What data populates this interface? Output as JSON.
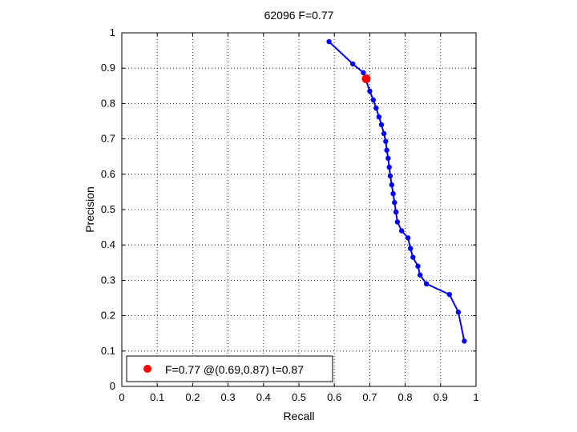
{
  "chart_data": {
    "type": "line",
    "title": "62096 F=0.77",
    "xlabel": "Recall",
    "ylabel": "Precision",
    "xlim": [
      0,
      1
    ],
    "ylim": [
      0,
      1
    ],
    "xticks": [
      "0",
      "0.1",
      "0.2",
      "0.3",
      "0.4",
      "0.5",
      "0.6",
      "0.7",
      "0.8",
      "0.9",
      "1"
    ],
    "yticks": [
      "0",
      "0.1",
      "0.2",
      "0.3",
      "0.4",
      "0.5",
      "0.6",
      "0.7",
      "0.8",
      "0.9",
      "1"
    ],
    "grid": true,
    "series": [
      {
        "color": "#0000ff",
        "x": [
          0.585,
          0.652,
          0.682,
          0.7,
          0.71,
          0.718,
          0.726,
          0.733,
          0.74,
          0.745,
          0.748,
          0.752,
          0.755,
          0.758,
          0.762,
          0.766,
          0.77,
          0.774,
          0.778,
          0.79,
          0.808,
          0.815,
          0.822,
          0.836,
          0.842,
          0.86,
          0.925,
          0.95,
          0.967
        ],
        "y": [
          0.975,
          0.912,
          0.887,
          0.835,
          0.81,
          0.787,
          0.762,
          0.74,
          0.715,
          0.693,
          0.668,
          0.645,
          0.62,
          0.595,
          0.57,
          0.545,
          0.52,
          0.493,
          0.465,
          0.44,
          0.42,
          0.39,
          0.365,
          0.34,
          0.315,
          0.29,
          0.26,
          0.21,
          0.128
        ]
      }
    ],
    "highlight": {
      "x": 0.69,
      "y": 0.87,
      "color": "#ff0000"
    },
    "legend": {
      "text": "F=0.77 @(0.69,0.87) t=0.87",
      "position": "bottom-left"
    }
  }
}
